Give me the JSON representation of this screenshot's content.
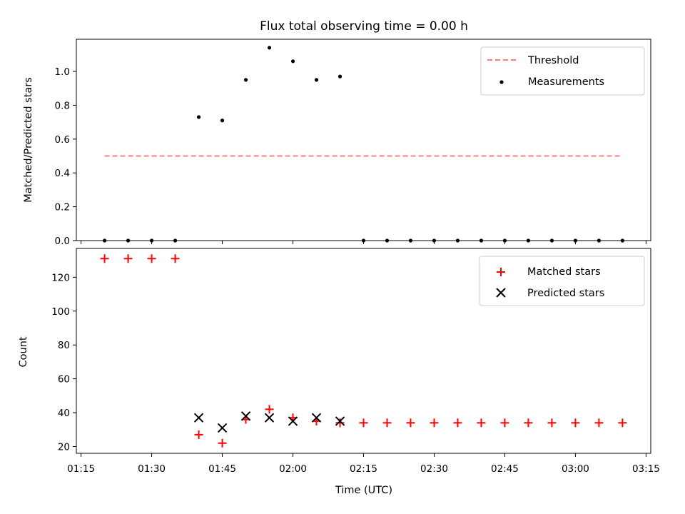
{
  "chart_data": [
    {
      "type": "scatter",
      "title": "Flux total observing time = 0.00 h",
      "xlabel": "",
      "ylabel": "Matched/Predicted stars",
      "ylim": [
        0,
        1.19
      ],
      "yticks": [
        "0.0",
        "0.2",
        "0.4",
        "0.6",
        "0.8",
        "1.0"
      ],
      "ytick_values": [
        0,
        0.2,
        0.4,
        0.6,
        0.8,
        1.0
      ],
      "legend_position": "top-right",
      "threshold": {
        "name": "Threshold",
        "value": 0.5,
        "color": "#ff7f7f",
        "x_start": "01:20",
        "x_end": "03:10"
      },
      "series": [
        {
          "name": "Measurements",
          "color": "#000000",
          "marker": "dot",
          "x": [
            "01:20",
            "01:25",
            "01:30",
            "01:35",
            "01:40",
            "01:45",
            "01:50",
            "01:55",
            "02:00",
            "02:05",
            "02:10",
            "02:15",
            "02:20",
            "02:25",
            "02:30",
            "02:35",
            "02:40",
            "02:45",
            "02:50",
            "02:55",
            "03:00",
            "03:05",
            "03:10"
          ],
          "y": [
            0,
            0,
            0,
            0,
            0.73,
            0.71,
            0.95,
            1.14,
            1.06,
            0.95,
            0.97,
            0,
            0,
            0,
            0,
            0,
            0,
            0,
            0,
            0,
            0,
            0,
            0
          ]
        }
      ]
    },
    {
      "type": "scatter",
      "title": "",
      "xlabel": "Time (UTC)",
      "ylabel": "Count",
      "ylim": [
        16,
        137
      ],
      "yticks": [
        "20",
        "40",
        "60",
        "80",
        "100",
        "120"
      ],
      "ytick_values": [
        20,
        40,
        60,
        80,
        100,
        120
      ],
      "xlim": [
        "01:14",
        "03:16"
      ],
      "xticks": [
        "01:15",
        "01:30",
        "01:45",
        "02:00",
        "02:15",
        "02:30",
        "02:45",
        "03:00",
        "03:15"
      ],
      "legend_position": "top-right",
      "series": [
        {
          "name": "Matched stars",
          "color": "#ff0000",
          "marker": "plus",
          "x": [
            "01:20",
            "01:25",
            "01:30",
            "01:35",
            "01:40",
            "01:45",
            "01:50",
            "01:55",
            "02:00",
            "02:05",
            "02:10",
            "02:15",
            "02:20",
            "02:25",
            "02:30",
            "02:35",
            "02:40",
            "02:45",
            "02:50",
            "02:55",
            "03:00",
            "03:05",
            "03:10"
          ],
          "y": [
            131,
            131,
            131,
            131,
            27,
            22,
            36,
            42,
            37,
            35,
            34,
            34,
            34,
            34,
            34,
            34,
            34,
            34,
            34,
            34,
            34,
            34,
            34
          ]
        },
        {
          "name": "Predicted stars",
          "color": "#000000",
          "marker": "x",
          "x": [
            "01:40",
            "01:45",
            "01:50",
            "01:55",
            "02:00",
            "02:05",
            "02:10"
          ],
          "y": [
            37,
            31,
            38,
            37,
            35,
            37,
            35
          ]
        }
      ]
    }
  ]
}
